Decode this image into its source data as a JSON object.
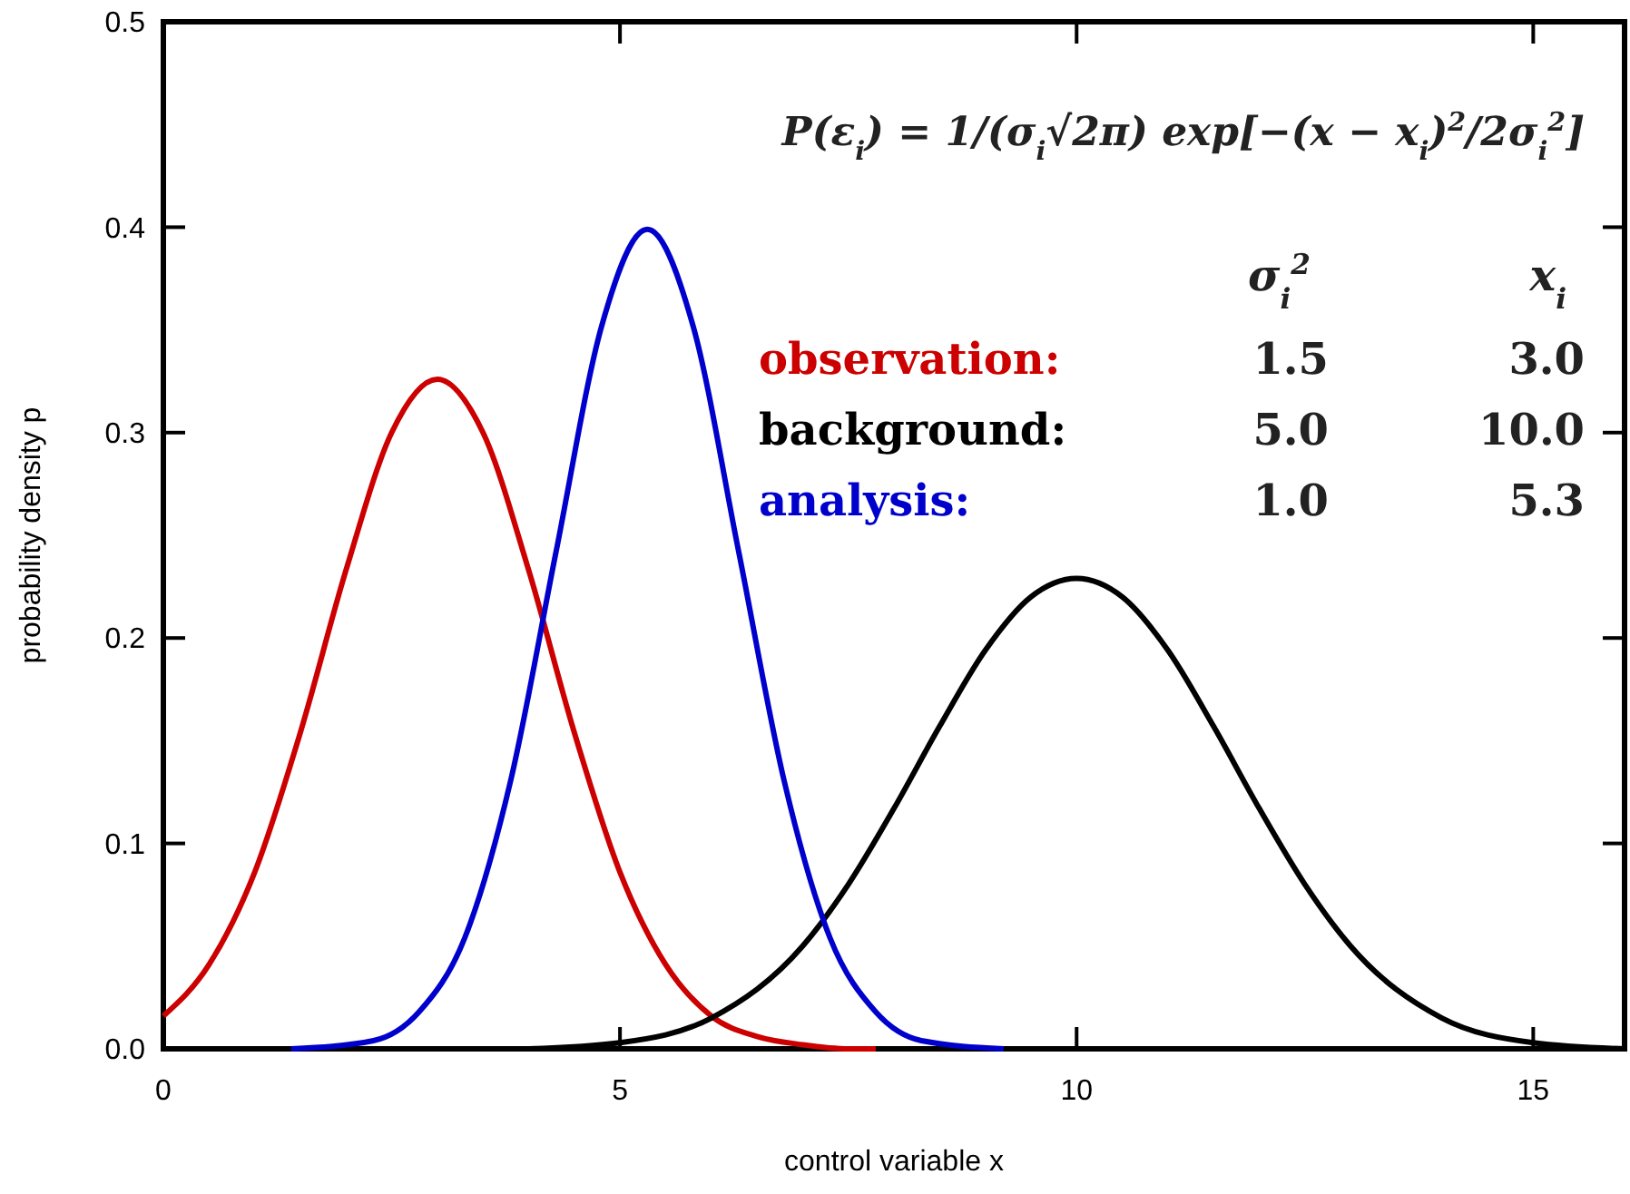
{
  "chart_data": {
    "type": "line",
    "xlabel": "control variable x",
    "ylabel": "probability density p",
    "xlim": [
      0,
      16
    ],
    "xticks": [
      0,
      5,
      10,
      15
    ],
    "ylim": [
      0,
      0.5
    ],
    "yticks": [
      {
        "value": 0,
        "label": "0.0"
      },
      0.1,
      0.2,
      0.3,
      0.4,
      0.5
    ],
    "grid": false,
    "legend": "top right",
    "marker": "none",
    "line_style": "solid",
    "annotations": [
      "P(ε$_{i}$) = 1/(σ$_{i}$√2π) exp[−(x − x$_{i}$)$^{2}$/2σ$_{i}$$^{2}$]",
      "σ$_{i}$$^{2}$",
      "x$_{i}$",
      "1.5",
      "3.0",
      "5.0",
      "10.0",
      "1.0",
      "5.3"
    ],
    "series": [
      {
        "name": "observation:",
        "color": "#cc0000",
        "x": [
          0,
          0.5,
          1,
          1.5,
          2,
          2.5,
          3,
          3.5,
          4,
          4.5,
          5,
          5.5,
          6,
          6.5,
          7,
          7.5,
          7.8
        ],
        "values": [
          0.016,
          0.041,
          0.086,
          0.154,
          0.233,
          0.3,
          0.326,
          0.3,
          0.233,
          0.154,
          0.086,
          0.041,
          0.016,
          0.006,
          0.002,
          0,
          0
        ]
      },
      {
        "name": "background:",
        "color": "#000000",
        "x": [
          4,
          5,
          6,
          7,
          7.5,
          8,
          8.5,
          9,
          9.5,
          10,
          10.5,
          11,
          11.5,
          12,
          12.5,
          13,
          14,
          15,
          16
        ],
        "values": [
          0,
          0.003,
          0.015,
          0.05,
          0.08,
          0.117,
          0.157,
          0.194,
          0.22,
          0.229,
          0.22,
          0.194,
          0.157,
          0.117,
          0.08,
          0.05,
          0.015,
          0.003,
          0
        ]
      },
      {
        "name": "analysis:",
        "color": "#0000cc",
        "x": [
          1.4,
          2.3,
          2.8,
          3.3,
          3.8,
          4.3,
          4.8,
          5.3,
          5.8,
          6.3,
          6.8,
          7.3,
          7.8,
          8.3,
          9.2
        ],
        "values": [
          0,
          0.004,
          0.018,
          0.054,
          0.13,
          0.242,
          0.352,
          0.399,
          0.352,
          0.242,
          0.13,
          0.054,
          0.018,
          0.004,
          0
        ]
      }
    ]
  }
}
